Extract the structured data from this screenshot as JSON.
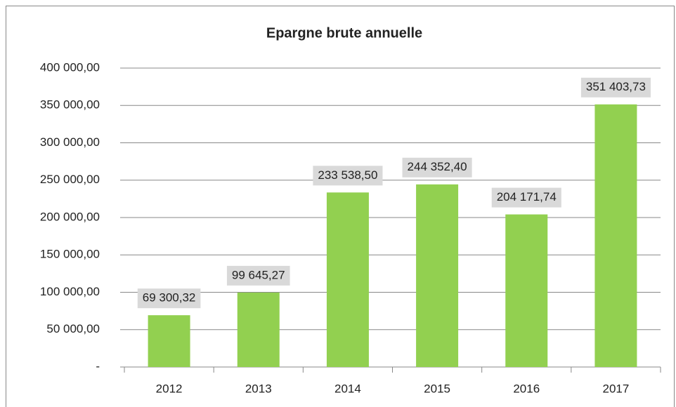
{
  "chart_data": {
    "type": "bar",
    "title": "Epargne brute annuelle",
    "categories": [
      "2012",
      "2013",
      "2014",
      "2015",
      "2016",
      "2017"
    ],
    "values": [
      69300.32,
      99645.27,
      233538.5,
      244352.4,
      204171.74,
      351403.73
    ],
    "value_labels": [
      "69 300,32",
      "99 645,27",
      "233 538,50",
      "244 352,40",
      "204 171,74",
      "351 403,73"
    ],
    "color": "#92d050",
    "ylim": [
      0,
      400000
    ],
    "yticks": [
      {
        "value": 0,
        "label": "-"
      },
      {
        "value": 50000,
        "label": "50 000,00"
      },
      {
        "value": 100000,
        "label": "100 000,00"
      },
      {
        "value": 150000,
        "label": "150 000,00"
      },
      {
        "value": 200000,
        "label": "200 000,00"
      },
      {
        "value": 250000,
        "label": "250 000,00"
      },
      {
        "value": 300000,
        "label": "300 000,00"
      },
      {
        "value": 350000,
        "label": "350 000,00"
      },
      {
        "value": 400000,
        "label": "400 000,00"
      }
    ],
    "grid": true
  }
}
